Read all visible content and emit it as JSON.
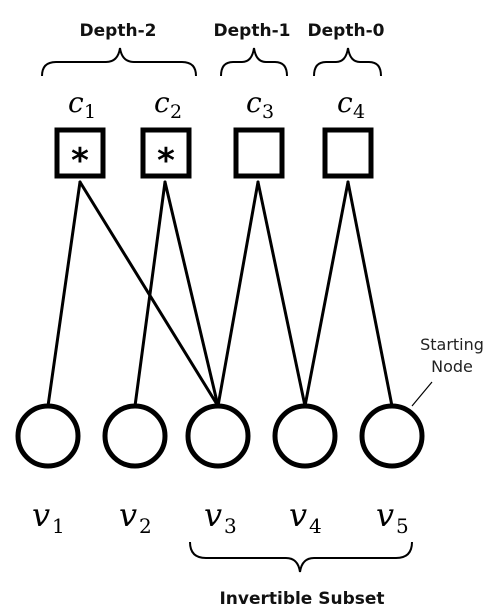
{
  "depth_labels": {
    "depth2": "Depth-2",
    "depth1": "Depth-1",
    "depth0": "Depth-0"
  },
  "check_nodes": [
    {
      "letter": "c",
      "index": "1",
      "marked": true,
      "mark": "*"
    },
    {
      "letter": "c",
      "index": "2",
      "marked": true,
      "mark": "*"
    },
    {
      "letter": "c",
      "index": "3",
      "marked": false,
      "mark": ""
    },
    {
      "letter": "c",
      "index": "4",
      "marked": false,
      "mark": ""
    }
  ],
  "variable_nodes": [
    {
      "letter": "v",
      "index": "1"
    },
    {
      "letter": "v",
      "index": "2"
    },
    {
      "letter": "v",
      "index": "3"
    },
    {
      "letter": "v",
      "index": "4"
    },
    {
      "letter": "v",
      "index": "5"
    }
  ],
  "starting_node_label": {
    "line1": "Starting",
    "line2": "Node"
  },
  "invertible_subset_label": "Invertible Subset",
  "edges": [
    [
      "c1",
      "v1"
    ],
    [
      "c1",
      "v3"
    ],
    [
      "c2",
      "v2"
    ],
    [
      "c2",
      "v3"
    ],
    [
      "c3",
      "v3"
    ],
    [
      "c3",
      "v4"
    ],
    [
      "c4",
      "v4"
    ],
    [
      "c4",
      "v5"
    ]
  ]
}
